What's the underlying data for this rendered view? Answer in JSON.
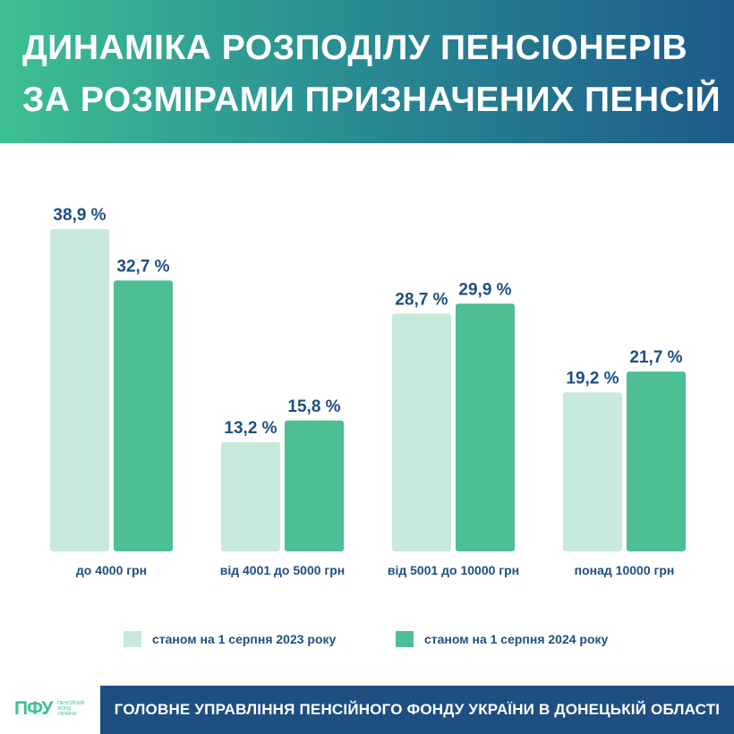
{
  "header": {
    "title_line1": "ДИНАМІКА РОЗПОДІЛУ ПЕНСІОНЕРІВ",
    "title_line2": "ЗА РОЗМІРАМИ ПРИЗНАЧЕНИХ ПЕНСІЙ"
  },
  "colors": {
    "series_2023": "#c6e9db",
    "series_2024": "#4cbf94",
    "label_text": "#1e4f80",
    "footer_bg": "#1e4f80"
  },
  "chart_data": {
    "type": "bar",
    "title": "ДИНАМІКА РОЗПОДІЛУ ПЕНСІОНЕРІВ ЗА РОЗМІРАМИ ПРИЗНАЧЕНИХ ПЕНСІЙ",
    "categories": [
      "до 4000 грн",
      "від 4001 до 5000 грн",
      "від 5001 до 10000 грн",
      "понад 10000 грн"
    ],
    "series": [
      {
        "name": "станом на 1 серпня 2023 року",
        "values": [
          38.9,
          13.2,
          28.7,
          19.2
        ],
        "labels": [
          "38,9 %",
          "13,2 %",
          "28,7 %",
          "19,2 %"
        ],
        "color": "#c6e9db"
      },
      {
        "name": "станом на 1 серпня 2024 року",
        "values": [
          32.7,
          15.8,
          29.9,
          21.7
        ],
        "labels": [
          "32,7 %",
          "15,8 %",
          "29,9 %",
          "21,7 %"
        ],
        "color": "#4cbf94"
      }
    ],
    "ylim": [
      0,
      40
    ],
    "grid": false,
    "legend_position": "bottom"
  },
  "legend": {
    "item1": "станом на 1 серпня 2023 року",
    "item2": "станом на 1 серпня 2024 року"
  },
  "footer": {
    "text": "ГОЛОВНЕ УПРАВЛІННЯ ПЕНСІЙНОГО ФОНДУ УКРАЇНИ В ДОНЕЦЬКІЙ ОБЛАСТІ",
    "logo_mark": "ПФУ",
    "logo_sub": "ПЕНСІЙНИЙ ФОНД УКРАЇНИ"
  }
}
